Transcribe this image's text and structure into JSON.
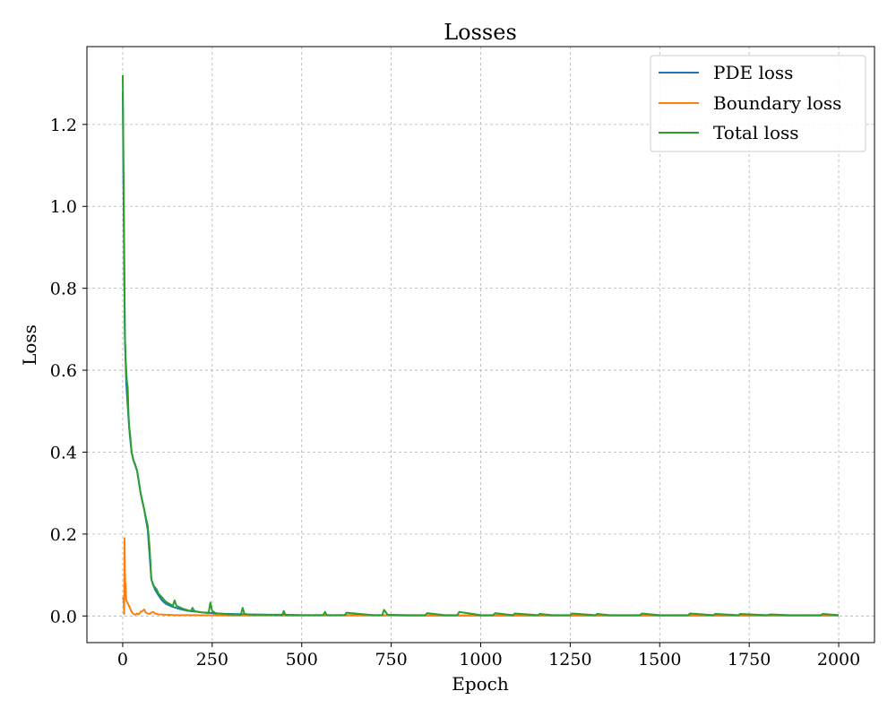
{
  "chart_data": {
    "type": "line",
    "title": "Losses",
    "xlabel": "Epoch",
    "ylabel": "Loss",
    "xlim": [
      -100,
      2100
    ],
    "ylim": [
      -0.065,
      1.39
    ],
    "xticks": [
      0,
      250,
      500,
      750,
      1000,
      1250,
      1500,
      1750,
      2000
    ],
    "yticks": [
      0.0,
      0.2,
      0.4,
      0.6,
      0.8,
      1.0,
      1.2
    ],
    "xtick_labels": [
      "0",
      "250",
      "500",
      "750",
      "1000",
      "1250",
      "1500",
      "1750",
      "2000"
    ],
    "ytick_labels": [
      "0.0",
      "0.2",
      "0.4",
      "0.6",
      "0.8",
      "1.0",
      "1.2"
    ],
    "grid": true,
    "legend_position": "top-right",
    "colors": {
      "pde": "#1f77b4",
      "boundary": "#ff7f0e",
      "total": "#2ca02c"
    },
    "series": [
      {
        "name": "PDE loss",
        "color": "#1f77b4",
        "x": [
          0,
          2,
          4,
          6,
          8,
          10,
          12,
          15,
          20,
          25,
          30,
          40,
          50,
          60,
          70,
          80,
          90,
          100,
          110,
          120,
          140,
          160,
          180,
          200,
          220,
          240,
          260,
          300,
          350,
          400,
          450,
          500,
          600,
          700,
          800,
          900,
          1000,
          1200,
          1400,
          1600,
          1800,
          2000
        ],
        "y": [
          1.28,
          1.05,
          0.85,
          0.68,
          0.62,
          0.57,
          0.54,
          0.5,
          0.44,
          0.4,
          0.38,
          0.355,
          0.3,
          0.26,
          0.21,
          0.09,
          0.065,
          0.05,
          0.038,
          0.03,
          0.022,
          0.017,
          0.013,
          0.011,
          0.009,
          0.008,
          0.006,
          0.005,
          0.004,
          0.003,
          0.003,
          0.002,
          0.002,
          0.002,
          0.001,
          0.001,
          0.001,
          0.001,
          0.001,
          0.001,
          0.001,
          0.001
        ]
      },
      {
        "name": "Boundary loss",
        "color": "#ff7f0e",
        "x": [
          0,
          2,
          4,
          5,
          6,
          7,
          8,
          9,
          10,
          12,
          15,
          20,
          25,
          30,
          35,
          40,
          45,
          50,
          55,
          60,
          65,
          70,
          75,
          80,
          85,
          90,
          100,
          120,
          150,
          200,
          300,
          500,
          1000,
          1500,
          2000
        ],
        "y": [
          0.04,
          0.045,
          0.005,
          0.19,
          0.12,
          0.06,
          0.08,
          0.05,
          0.04,
          0.035,
          0.03,
          0.02,
          0.01,
          0.005,
          0.003,
          0.006,
          0.004,
          0.01,
          0.012,
          0.016,
          0.008,
          0.006,
          0.005,
          0.008,
          0.01,
          0.006,
          0.004,
          0.003,
          0.002,
          0.002,
          0.001,
          0.001,
          0.001,
          0.001,
          0.001
        ]
      },
      {
        "name": "Total loss",
        "color": "#2ca02c",
        "x": [
          0,
          2,
          4,
          6,
          8,
          10,
          12,
          14,
          16,
          18,
          20,
          25,
          30,
          35,
          40,
          45,
          50,
          55,
          60,
          65,
          70,
          75,
          80,
          85,
          90,
          95,
          100,
          110,
          120,
          130,
          140,
          145,
          150,
          170,
          190,
          195,
          200,
          220,
          240,
          245,
          250,
          260,
          280,
          300,
          330,
          335,
          340,
          360,
          400,
          445,
          450,
          455,
          500,
          560,
          565,
          570,
          620,
          625,
          700,
          725,
          730,
          740,
          800,
          845,
          850,
          900,
          935,
          940,
          1000,
          1035,
          1040,
          1090,
          1095,
          1160,
          1165,
          1200,
          1250,
          1255,
          1320,
          1325,
          1360,
          1400,
          1445,
          1450,
          1500,
          1560,
          1580,
          1585,
          1650,
          1655,
          1720,
          1725,
          1800,
          1810,
          1860,
          1900,
          1950,
          1955,
          2000
        ],
        "y": [
          1.32,
          1.1,
          0.9,
          0.68,
          0.63,
          0.6,
          0.57,
          0.56,
          0.5,
          0.46,
          0.45,
          0.4,
          0.38,
          0.37,
          0.355,
          0.33,
          0.3,
          0.28,
          0.26,
          0.24,
          0.22,
          0.17,
          0.09,
          0.075,
          0.07,
          0.065,
          0.055,
          0.045,
          0.035,
          0.03,
          0.025,
          0.038,
          0.025,
          0.017,
          0.012,
          0.02,
          0.012,
          0.009,
          0.007,
          0.033,
          0.012,
          0.007,
          0.005,
          0.004,
          0.003,
          0.02,
          0.005,
          0.003,
          0.003,
          0.002,
          0.012,
          0.002,
          0.002,
          0.002,
          0.01,
          0.002,
          0.002,
          0.008,
          0.002,
          0.002,
          0.015,
          0.003,
          0.002,
          0.002,
          0.007,
          0.002,
          0.002,
          0.01,
          0.002,
          0.002,
          0.007,
          0.002,
          0.006,
          0.002,
          0.005,
          0.002,
          0.002,
          0.006,
          0.002,
          0.005,
          0.002,
          0.002,
          0.002,
          0.006,
          0.002,
          0.002,
          0.002,
          0.006,
          0.002,
          0.005,
          0.002,
          0.005,
          0.002,
          0.004,
          0.002,
          0.002,
          0.002,
          0.005,
          0.002
        ]
      }
    ]
  }
}
